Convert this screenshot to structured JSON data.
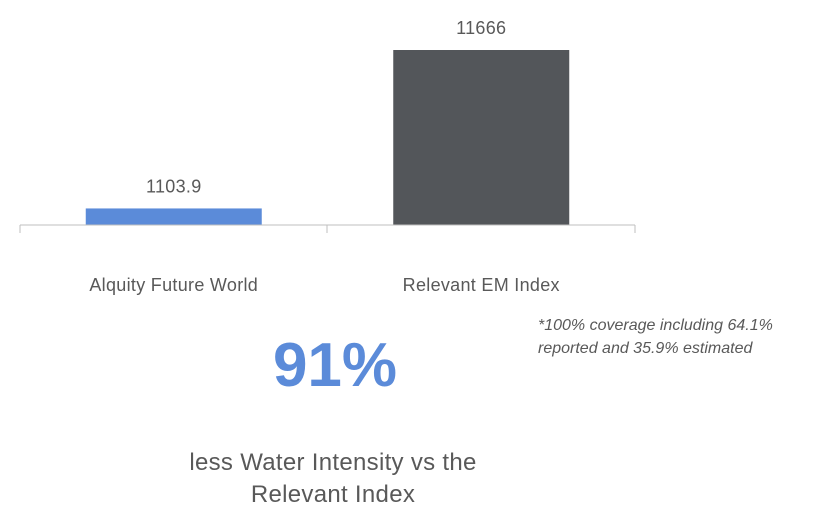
{
  "chart_data": {
    "type": "bar",
    "categories": [
      "Alquity Future World",
      "Relevant EM Index"
    ],
    "values": [
      1103.9,
      11666
    ],
    "value_labels": [
      "1103.9",
      "11666"
    ],
    "colors": [
      "#5b8bd9",
      "#53565a"
    ],
    "ylim": [
      0,
      11666
    ],
    "grid": false,
    "legend": "none"
  },
  "headline": {
    "percent": "91%",
    "caption_line1": "less Water Intensity vs the",
    "caption_line2": "Relevant Index"
  },
  "footnote": {
    "line1": "*100% coverage including 64.1%",
    "line2": "reported and 35.9% estimated"
  }
}
